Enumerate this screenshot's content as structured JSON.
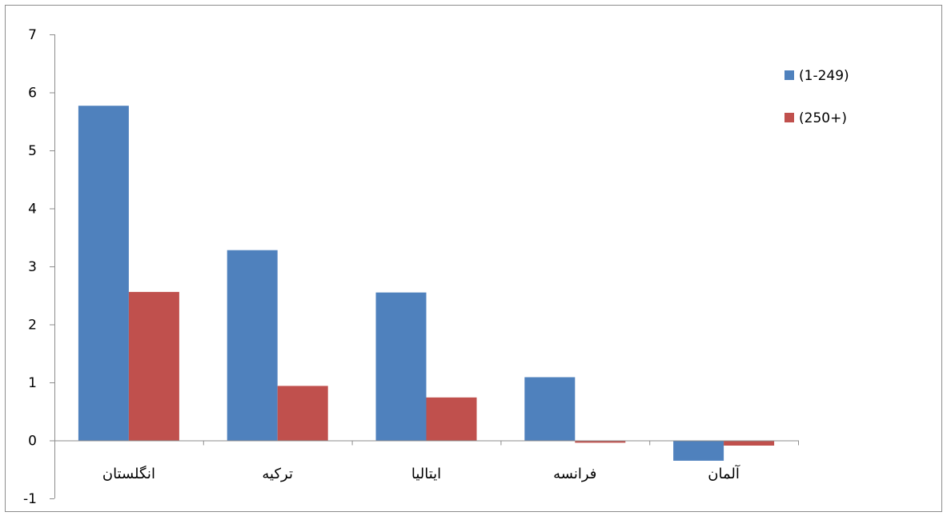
{
  "chart_data": {
    "type": "bar",
    "categories": [
      "انگلستان",
      "ترکیه",
      "ایتالیا",
      "فرانسه",
      "آلمان"
    ],
    "series": [
      {
        "name": "(1-249)",
        "color": "#4F81BD",
        "values": [
          5.77,
          3.28,
          2.55,
          1.09,
          -0.35
        ]
      },
      {
        "name": "(250+)",
        "color": "#C0504D",
        "values": [
          2.56,
          0.94,
          0.74,
          -0.04,
          -0.09
        ]
      }
    ],
    "yticks": [
      "7",
      "6",
      "5",
      "4",
      "3",
      "2",
      "1",
      "0",
      "-1"
    ],
    "ylim": [
      -1,
      7
    ],
    "grid": false,
    "legend_position": "top-right"
  }
}
